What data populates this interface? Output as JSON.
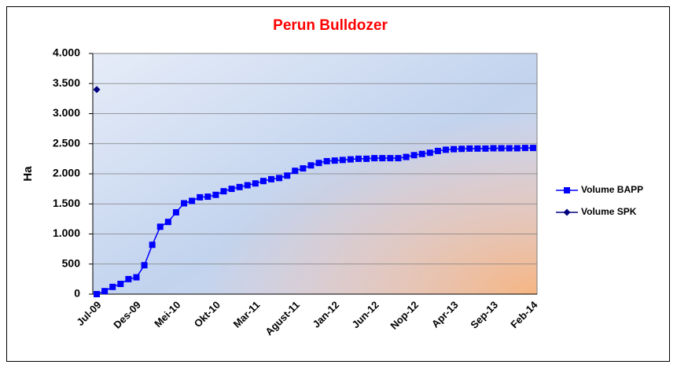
{
  "chart_data": {
    "type": "line",
    "title": "Perun Bulldozer",
    "y_label": "Ha",
    "categories": [
      "Jul-09",
      null,
      null,
      null,
      null,
      "Des-09",
      null,
      null,
      null,
      null,
      "Mei-10",
      null,
      null,
      null,
      null,
      "Okt-10",
      null,
      null,
      null,
      null,
      "Mar-11",
      null,
      null,
      null,
      null,
      "Agust-11",
      null,
      null,
      null,
      null,
      "Jan-12",
      null,
      null,
      null,
      null,
      "Jun-12",
      null,
      null,
      null,
      null,
      "Nop-12",
      null,
      null,
      null,
      null,
      "Apr-13",
      null,
      null,
      null,
      null,
      "Sep-13",
      null,
      null,
      null,
      null,
      "Feb-14"
    ],
    "series": [
      {
        "name": "Volume BAPP",
        "color": "#0000ff",
        "marker": "square",
        "values": [
          0,
          50,
          120,
          170,
          250,
          280,
          480,
          820,
          1120,
          1200,
          1360,
          1510,
          1550,
          1610,
          1620,
          1650,
          1710,
          1750,
          1780,
          1810,
          1840,
          1880,
          1910,
          1930,
          1970,
          2050,
          2090,
          2140,
          2180,
          2210,
          2220,
          2230,
          2240,
          2250,
          2250,
          2260,
          2260,
          2260,
          2260,
          2280,
          2310,
          2330,
          2350,
          2380,
          2400,
          2410,
          2415,
          2420,
          2420,
          2420,
          2425,
          2425,
          2425,
          2425,
          2430,
          2430
        ]
      },
      {
        "name": "Volume SPK",
        "color": "#000080",
        "marker": "diamond",
        "values": [
          3400,
          null,
          null,
          null,
          null,
          null,
          null,
          null,
          null,
          null,
          null,
          null,
          null,
          null,
          null,
          null,
          null,
          null,
          null,
          null,
          null,
          null,
          null,
          null,
          null,
          null,
          null,
          null,
          null,
          null,
          null,
          null,
          null,
          null,
          null,
          null,
          null,
          null,
          null,
          null,
          null,
          null,
          null,
          null,
          null,
          null,
          null,
          null,
          null,
          null,
          null,
          null,
          null,
          null,
          null,
          null
        ]
      }
    ],
    "ylim": [
      0,
      4000
    ],
    "yticks": [
      0,
      500,
      {
        "value": 1000,
        "label": "1.000"
      },
      {
        "value": 1500,
        "label": "1.500"
      },
      {
        "value": 2000,
        "label": "2.000"
      },
      {
        "value": 2500,
        "label": "2.500"
      },
      {
        "value": 3000,
        "label": "3.000"
      },
      {
        "value": 3500,
        "label": "3.500"
      },
      {
        "value": 4000,
        "label": "4.000"
      }
    ],
    "grid": true,
    "legend": "right"
  }
}
